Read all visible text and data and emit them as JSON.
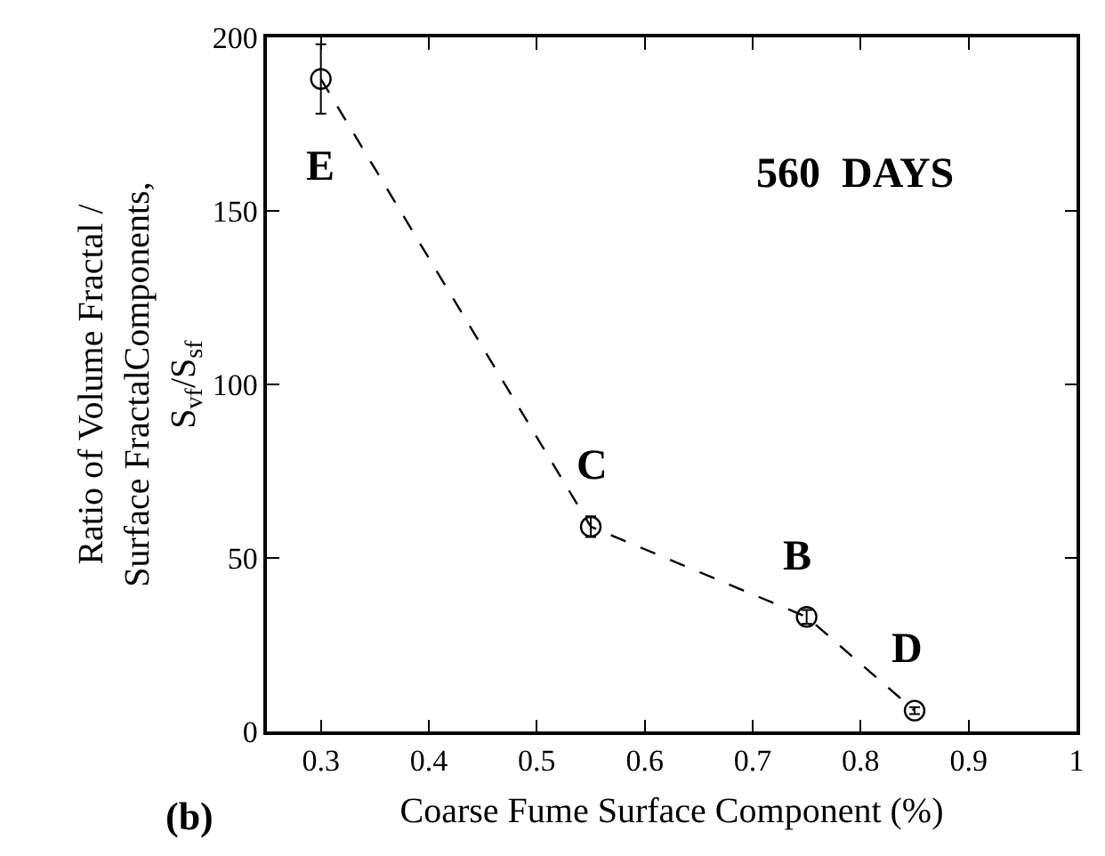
{
  "chart_data": {
    "type": "line",
    "xlabel": "Coarse Fume Surface Component (%)",
    "ylabel": "Ratio of Volume Fractal /\nSurface FractalComponents,\nS$_{vf}$/S$_{sf}$",
    "x": [
      0.3,
      0.55,
      0.75,
      0.85
    ],
    "series": [
      {
        "color": "#000000",
        "values": [
          188,
          59,
          33,
          6
        ],
        "errors": [
          10,
          3,
          2,
          1
        ]
      }
    ],
    "marker": "circle",
    "line_style": "dashed",
    "legend": false,
    "xlim": [
      0.25,
      1
    ],
    "xticks": [
      0.3,
      0.4,
      0.5,
      0.6,
      0.7,
      0.8,
      0.9,
      1
    ],
    "ylim": [
      0,
      200
    ],
    "yticks": [
      0,
      50,
      100,
      150,
      200
    ],
    "annotations": [
      {
        "text": "E",
        "x": 0.3,
        "y": 188
      },
      {
        "text": "C",
        "x": 0.55,
        "y": 59
      },
      {
        "text": "B",
        "x": 0.75,
        "y": 33
      },
      {
        "text": "D",
        "x": 0.85,
        "y": 6
      },
      "560  DAYS",
      "(b)"
    ]
  }
}
